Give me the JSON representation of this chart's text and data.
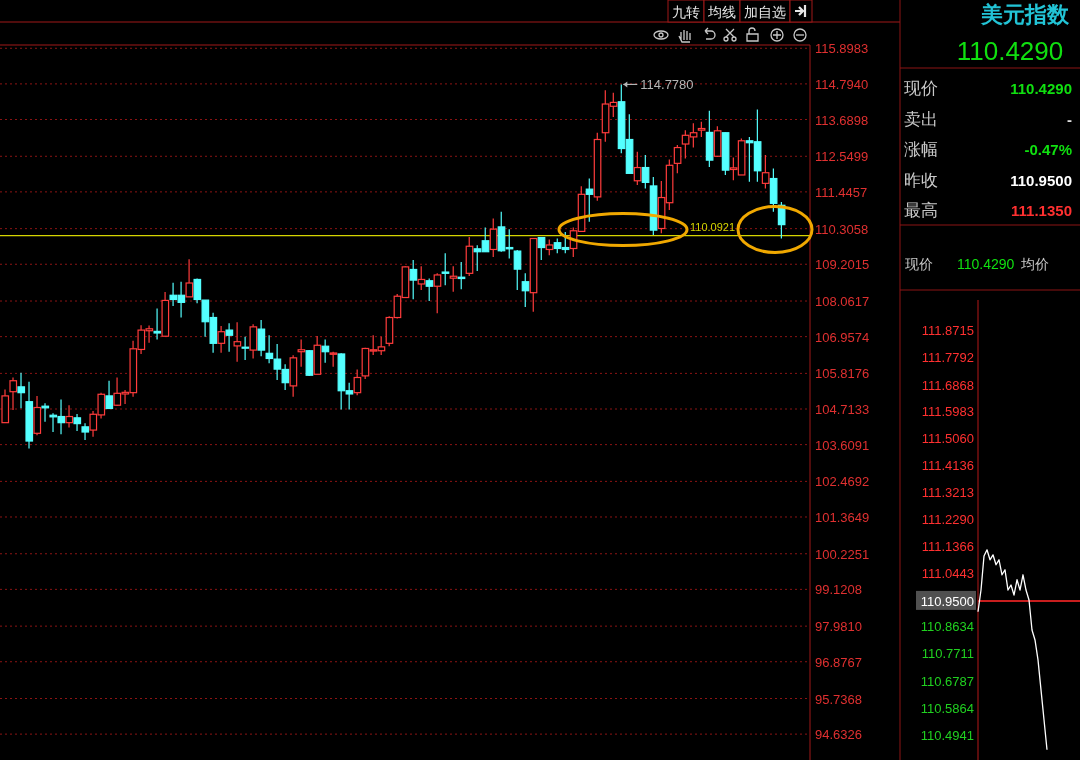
{
  "chart_data": [
    {
      "type": "candlestick",
      "categories": [
        null,
        null,
        null,
        null,
        null,
        null,
        null,
        null,
        null,
        null,
        null,
        null,
        null,
        null,
        null,
        null,
        null,
        null,
        null,
        null,
        null,
        null,
        null,
        null,
        null,
        null,
        null,
        null,
        null,
        null,
        null,
        null,
        null,
        null,
        null,
        null,
        null,
        null,
        null,
        null,
        null,
        null,
        null,
        null,
        null,
        null,
        null,
        null,
        null,
        null,
        null,
        null,
        null,
        null,
        null,
        null,
        null,
        null,
        null,
        null,
        null,
        null,
        null,
        null,
        null,
        null,
        null,
        null,
        null,
        null,
        null,
        null,
        null,
        null,
        null,
        null,
        null,
        null,
        null,
        null,
        null,
        null,
        null,
        null,
        null,
        null,
        null,
        null,
        null,
        null,
        null,
        null,
        null,
        null,
        null,
        null,
        null,
        null
      ],
      "ohlc": [
        [
          104.29,
          105.32,
          104.29,
          105.12
        ],
        [
          105.25,
          105.69,
          104.68,
          105.59
        ],
        [
          105.4,
          105.84,
          104.74,
          105.22
        ],
        [
          104.94,
          105.56,
          103.49,
          103.72
        ],
        [
          103.96,
          105.12,
          103.9,
          104.76
        ],
        [
          104.8,
          104.89,
          104.32,
          104.75
        ],
        [
          104.52,
          104.58,
          104.0,
          104.47
        ],
        [
          104.48,
          105.01,
          103.93,
          104.29
        ],
        [
          104.29,
          104.83,
          104.14,
          104.48
        ],
        [
          104.44,
          104.56,
          104.03,
          104.26
        ],
        [
          104.16,
          104.27,
          103.75,
          104.0
        ],
        [
          104.06,
          104.65,
          103.85,
          104.55
        ],
        [
          104.53,
          105.22,
          104.42,
          105.17
        ],
        [
          105.12,
          105.59,
          104.71,
          104.73
        ],
        [
          104.83,
          105.69,
          104.81,
          105.2
        ],
        [
          105.18,
          105.3,
          104.87,
          105.23
        ],
        [
          105.22,
          106.83,
          105.09,
          106.58
        ],
        [
          106.56,
          107.31,
          106.42,
          107.16
        ],
        [
          107.14,
          107.3,
          106.77,
          107.2
        ],
        [
          107.12,
          107.83,
          106.87,
          107.07
        ],
        [
          106.97,
          108.34,
          106.97,
          108.08
        ],
        [
          108.24,
          108.63,
          107.91,
          108.11
        ],
        [
          108.24,
          108.66,
          107.55,
          108.02
        ],
        [
          108.19,
          109.36,
          108.19,
          108.62
        ],
        [
          108.73,
          108.76,
          107.99,
          108.11
        ],
        [
          108.09,
          108.09,
          106.95,
          107.42
        ],
        [
          107.55,
          107.7,
          106.46,
          106.75
        ],
        [
          106.75,
          107.29,
          106.46,
          107.11
        ],
        [
          107.16,
          107.37,
          106.49,
          107.0
        ],
        [
          106.67,
          107.4,
          106.18,
          106.8
        ],
        [
          106.63,
          106.95,
          106.23,
          106.6
        ],
        [
          106.54,
          107.34,
          106.28,
          107.26
        ],
        [
          107.19,
          107.47,
          106.35,
          106.54
        ],
        [
          106.44,
          107.0,
          106.13,
          106.28
        ],
        [
          106.26,
          106.73,
          105.61,
          105.95
        ],
        [
          105.94,
          106.1,
          105.3,
          105.53
        ],
        [
          105.43,
          106.38,
          105.09,
          106.3
        ],
        [
          106.49,
          106.87,
          106.02,
          106.55
        ],
        [
          106.52,
          106.54,
          105.74,
          105.76
        ],
        [
          105.79,
          106.98,
          105.79,
          106.69
        ],
        [
          106.66,
          106.87,
          106.15,
          106.49
        ],
        [
          106.41,
          106.49,
          106.02,
          106.45
        ],
        [
          106.42,
          106.44,
          104.7,
          105.28
        ],
        [
          105.28,
          105.53,
          104.7,
          105.18
        ],
        [
          105.22,
          105.94,
          105.14,
          105.69
        ],
        [
          105.74,
          106.61,
          105.64,
          106.59
        ],
        [
          106.51,
          107.0,
          106.39,
          106.55
        ],
        [
          106.52,
          106.95,
          106.39,
          106.64
        ],
        [
          106.75,
          107.59,
          106.66,
          107.55
        ],
        [
          107.55,
          108.28,
          107.52,
          108.21
        ],
        [
          108.17,
          109.14,
          108.17,
          109.12
        ],
        [
          109.04,
          109.33,
          108.12,
          108.71
        ],
        [
          108.59,
          109.14,
          108.4,
          108.73
        ],
        [
          108.69,
          108.76,
          108.06,
          108.52
        ],
        [
          108.52,
          108.92,
          107.68,
          108.87
        ],
        [
          108.96,
          109.54,
          108.55,
          108.92
        ],
        [
          108.77,
          109.14,
          108.35,
          108.83
        ],
        [
          108.8,
          109.27,
          108.43,
          108.76
        ],
        [
          108.92,
          110.05,
          108.84,
          109.76
        ],
        [
          109.68,
          109.79,
          108.99,
          109.59
        ],
        [
          109.93,
          110.34,
          109.59,
          109.59
        ],
        [
          109.66,
          110.62,
          109.43,
          110.29
        ],
        [
          110.36,
          110.83,
          109.59,
          109.62
        ],
        [
          109.72,
          110.29,
          109.38,
          109.68
        ],
        [
          109.61,
          109.64,
          108.4,
          109.05
        ],
        [
          108.66,
          108.92,
          107.88,
          108.38
        ],
        [
          108.32,
          110.0,
          107.73,
          110.0
        ],
        [
          110.03,
          110.05,
          109.33,
          109.72
        ],
        [
          109.66,
          109.97,
          109.48,
          109.8
        ],
        [
          109.87,
          110.0,
          109.54,
          109.69
        ],
        [
          109.72,
          110.2,
          109.54,
          109.66
        ],
        [
          109.69,
          110.34,
          109.43,
          110.24
        ],
        [
          110.22,
          111.62,
          110.21,
          111.37
        ],
        [
          111.53,
          111.86,
          110.52,
          111.37
        ],
        [
          111.29,
          113.28,
          111.17,
          113.07
        ],
        [
          113.28,
          114.6,
          113.0,
          114.17
        ],
        [
          114.1,
          114.52,
          113.77,
          114.22
        ],
        [
          114.24,
          114.778,
          112.64,
          112.79
        ],
        [
          113.07,
          113.85,
          112.02,
          112.02
        ],
        [
          111.79,
          112.69,
          111.66,
          112.2
        ],
        [
          112.2,
          112.59,
          111.55,
          111.74
        ],
        [
          111.63,
          111.91,
          110.11,
          110.26
        ],
        [
          110.31,
          111.78,
          110.16,
          111.27
        ],
        [
          111.11,
          112.45,
          110.88,
          112.27
        ],
        [
          112.33,
          112.9,
          112.02,
          112.82
        ],
        [
          112.93,
          113.36,
          112.48,
          113.2
        ],
        [
          113.15,
          113.57,
          112.82,
          113.28
        ],
        [
          113.36,
          113.62,
          113.15,
          113.41
        ],
        [
          113.29,
          113.96,
          112.22,
          112.43
        ],
        [
          112.55,
          113.48,
          112.53,
          113.34
        ],
        [
          113.28,
          113.29,
          111.97,
          112.12
        ],
        [
          112.14,
          112.51,
          111.81,
          112.19
        ],
        [
          111.97,
          113.1,
          111.97,
          113.03
        ],
        [
          113.03,
          113.15,
          111.76,
          112.97
        ],
        [
          113.0,
          114.0,
          111.76,
          112.1
        ],
        [
          111.71,
          112.59,
          111.55,
          112.04
        ],
        [
          111.86,
          112.17,
          110.83,
          111.09
        ],
        [
          111.03,
          111.135,
          110.0,
          110.43
        ]
      ],
      "colors": [
        "#ff3c3c",
        "#ff3c3c",
        "#54ffff",
        "#54ffff",
        "#ff3c3c",
        "#54ffff",
        "#54ffff",
        "#54ffff",
        "#ff3c3c",
        "#54ffff",
        "#54ffff",
        "#ff3c3c",
        "#ff3c3c",
        "#54ffff",
        "#ff3c3c",
        "#ff3c3c",
        "#ff3c3c",
        "#ff3c3c",
        "#ff3c3c",
        "#54ffff",
        "#ff3c3c",
        "#54ffff",
        "#54ffff",
        "#ff3c3c",
        "#54ffff",
        "#54ffff",
        "#54ffff",
        "#ff3c3c",
        "#54ffff",
        "#ff3c3c",
        "#54ffff",
        "#ff3c3c",
        "#54ffff",
        "#54ffff",
        "#54ffff",
        "#54ffff",
        "#ff3c3c",
        "#ff3c3c",
        "#54ffff",
        "#ff3c3c",
        "#54ffff",
        "#ff3c3c",
        "#54ffff",
        "#54ffff",
        "#ff3c3c",
        "#ff3c3c",
        "#ff3c3c",
        "#ff3c3c",
        "#ff3c3c",
        "#ff3c3c",
        "#ff3c3c",
        "#54ffff",
        "#ff3c3c",
        "#54ffff",
        "#ff3c3c",
        "#54ffff",
        "#ff3c3c",
        "#54ffff",
        "#ff3c3c",
        "#54ffff",
        "#54ffff",
        "#ff3c3c",
        "#54ffff",
        "#54ffff",
        "#54ffff",
        "#54ffff",
        "#ff3c3c",
        "#54ffff",
        "#ff3c3c",
        "#54ffff",
        "#54ffff",
        "#ff3c3c",
        "#ff3c3c",
        "#54ffff",
        "#ff3c3c",
        "#ff3c3c",
        "#ff3c3c",
        "#54ffff",
        "#54ffff",
        "#ff3c3c",
        "#54ffff",
        "#54ffff",
        "#ff3c3c",
        "#ff3c3c",
        "#ff3c3c",
        "#ff3c3c",
        "#ff3c3c",
        "#ff3c3c",
        "#54ffff",
        "#ff3c3c",
        "#54ffff",
        "#ff3c3c",
        "#ff3c3c",
        "#54ffff",
        "#54ffff",
        "#ff3c3c",
        "#54ffff",
        "#54ffff"
      ],
      "ylim": [
        93.83,
        116.0
      ],
      "yticks": [
        115.8983,
        {
          "value": 114.794,
          "label": "114.7940"
        },
        113.6898,
        112.5499,
        111.4457,
        110.3058,
        109.2015,
        108.0617,
        106.9574,
        105.8176,
        104.7133,
        103.6091,
        102.4692,
        101.3649,
        100.2251,
        99.1208,
        {
          "value": 97.981,
          "label": "97.9810"
        },
        96.8767,
        95.7368,
        94.6326
      ],
      "grid": "y",
      "ref_lines": [
        {
          "axis": "y",
          "value": 110.0921,
          "label": "110.0921",
          "color": "#d4d400"
        }
      ],
      "annotations": [
        "九转",
        "均线",
        "加自选",
        "114.7780"
      ]
    },
    {
      "type": "other",
      "title": "美元指数",
      "annotations": [
        "110.4290",
        "现价",
        "110.4290",
        "卖出",
        "-",
        "涨幅",
        "-0.47%",
        "昨收",
        "110.9500",
        "最高",
        "111.1350",
        "现价",
        "110.4290",
        "均价"
      ]
    },
    {
      "type": "line",
      "categories": [
        null,
        null,
        null,
        null,
        null,
        null,
        null,
        null,
        null,
        null,
        null,
        null,
        null,
        null,
        null,
        null,
        null,
        null,
        null,
        null,
        null,
        null,
        null,
        null
      ],
      "values": [
        110.913,
        110.987,
        111.103,
        111.124,
        111.09,
        111.107,
        111.073,
        111.09,
        111.039,
        111.056,
        110.987,
        111.004,
        110.97,
        111.022,
        110.987,
        111.039,
        110.987,
        110.953,
        110.851,
        110.817,
        110.749,
        110.647,
        110.545,
        110.443
      ],
      "color": "#ffffff",
      "ylim": [
        110.408,
        111.975
      ],
      "yticks": [
        111.8715,
        111.7792,
        111.6868,
        111.5983,
        {
          "value": 111.506,
          "label": "111.5060"
        },
        111.4136,
        111.3213,
        {
          "value": 111.229,
          "label": "111.2290"
        },
        111.1366,
        111.0443,
        {
          "value": 110.95,
          "label": "110.9500"
        },
        110.8634,
        110.7711,
        110.6787,
        110.5864,
        110.4941
      ],
      "ref_lines": [
        {
          "axis": "y",
          "value": 110.95,
          "color": "#c81e1e"
        }
      ]
    }
  ]
}
